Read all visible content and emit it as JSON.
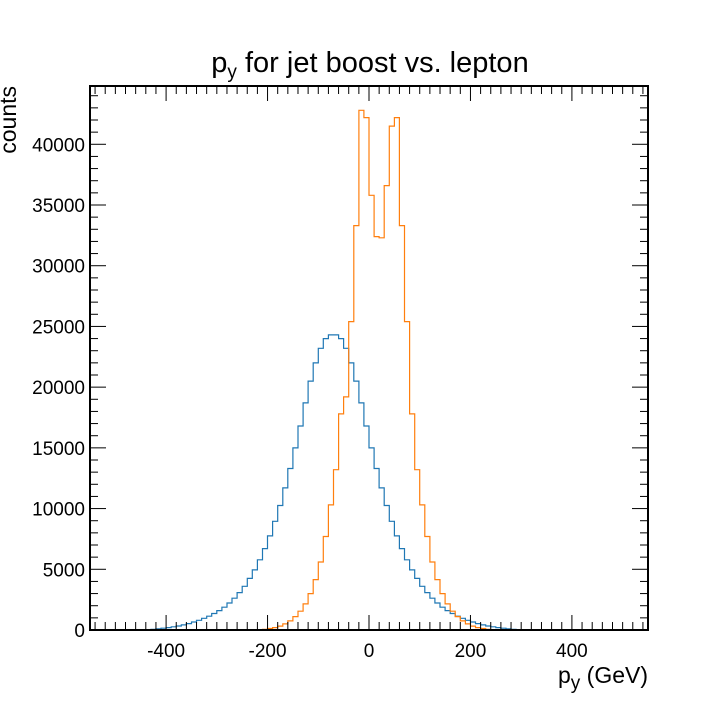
{
  "chart_data": {
    "type": "line",
    "title": "p",
    "title_subscript": "y",
    "title_rest": " for jet boost vs. lepton",
    "xlabel_main": "p",
    "xlabel_sub": "y",
    "xlabel_rest": " (GeV)",
    "ylabel": "counts",
    "xlim": [
      -550,
      550
    ],
    "ylim": [
      0,
      44800
    ],
    "grid": false,
    "legend": "none",
    "xticks": [
      -400,
      -200,
      0,
      200,
      400
    ],
    "xtick_labels": [
      "-400",
      "-200",
      "0",
      "200",
      "400"
    ],
    "yticks": [
      0,
      5000,
      10000,
      15000,
      20000,
      25000,
      30000,
      35000,
      40000
    ],
    "ytick_labels": [
      "0",
      "5000",
      "10000",
      "15000",
      "20000",
      "25000",
      "30000",
      "35000",
      "40000"
    ],
    "bin_edges": [
      -550,
      -540,
      -530,
      -520,
      -510,
      -500,
      -490,
      -480,
      -470,
      -460,
      -450,
      -440,
      -430,
      -420,
      -410,
      -400,
      -390,
      -380,
      -370,
      -360,
      -350,
      -340,
      -330,
      -320,
      -310,
      -300,
      -290,
      -280,
      -270,
      -260,
      -250,
      -240,
      -230,
      -220,
      -210,
      -200,
      -190,
      -180,
      -170,
      -160,
      -150,
      -140,
      -130,
      -120,
      -110,
      -100,
      -90,
      -80,
      -70,
      -60,
      -50,
      -40,
      -30,
      -20,
      -10,
      0,
      10,
      20,
      30,
      40,
      50,
      60,
      70,
      80,
      90,
      100,
      110,
      120,
      130,
      140,
      150,
      160,
      170,
      180,
      190,
      200,
      210,
      220,
      230,
      240,
      250,
      260,
      270,
      280,
      290,
      300,
      310,
      320,
      330,
      340,
      350,
      360,
      370,
      380,
      390,
      400,
      410,
      420,
      430,
      440,
      450,
      460,
      470,
      480,
      490,
      500,
      510,
      520,
      530,
      540,
      550
    ],
    "series": [
      {
        "color": "#1f77b4",
        "values": [
          0,
          0,
          0,
          0,
          0,
          0,
          0,
          0,
          0,
          0,
          10,
          30,
          60,
          100,
          150,
          200,
          260,
          330,
          420,
          530,
          660,
          800,
          960,
          1140,
          1360,
          1600,
          1880,
          2220,
          2620,
          3080,
          3600,
          4250,
          4950,
          5780,
          6700,
          7750,
          8950,
          10250,
          11700,
          13300,
          15000,
          16800,
          18700,
          20500,
          22000,
          23200,
          24000,
          24300,
          24300,
          24000,
          23200,
          22000,
          20500,
          18700,
          16800,
          15000,
          13300,
          11700,
          10250,
          8950,
          7750,
          6700,
          5780,
          4950,
          4250,
          3600,
          3080,
          2620,
          2220,
          1880,
          1600,
          1360,
          1140,
          960,
          800,
          660,
          530,
          420,
          330,
          260,
          200,
          150,
          100,
          60,
          30,
          10,
          0,
          0,
          0,
          0,
          0,
          0,
          0,
          0,
          0,
          0,
          0,
          0,
          0,
          0,
          0,
          0,
          0,
          0,
          0,
          0,
          0,
          0,
          0,
          0
        ]
      },
      {
        "color": "#ff7f0e",
        "values": [
          0,
          0,
          0,
          0,
          0,
          0,
          0,
          0,
          0,
          0,
          0,
          0,
          0,
          0,
          0,
          0,
          0,
          0,
          0,
          0,
          0,
          0,
          0,
          0,
          0,
          0,
          0,
          0,
          0,
          0,
          0,
          0,
          10,
          30,
          60,
          120,
          200,
          320,
          500,
          750,
          1100,
          1550,
          2150,
          3000,
          4150,
          5600,
          7700,
          10300,
          13200,
          17800,
          19200,
          25400,
          33300,
          42800,
          42200,
          35800,
          32400,
          32300,
          36600,
          41500,
          42200,
          33300,
          25400,
          17800,
          13200,
          10300,
          7700,
          5600,
          4150,
          3000,
          2150,
          1550,
          1100,
          750,
          500,
          320,
          200,
          120,
          60,
          30,
          10,
          0,
          0,
          0,
          0,
          0,
          0,
          0,
          0,
          0,
          0,
          0,
          0,
          0,
          0,
          0,
          0,
          0,
          0,
          0,
          0,
          0,
          0,
          0,
          0,
          0,
          0,
          0,
          0,
          0
        ]
      }
    ]
  }
}
